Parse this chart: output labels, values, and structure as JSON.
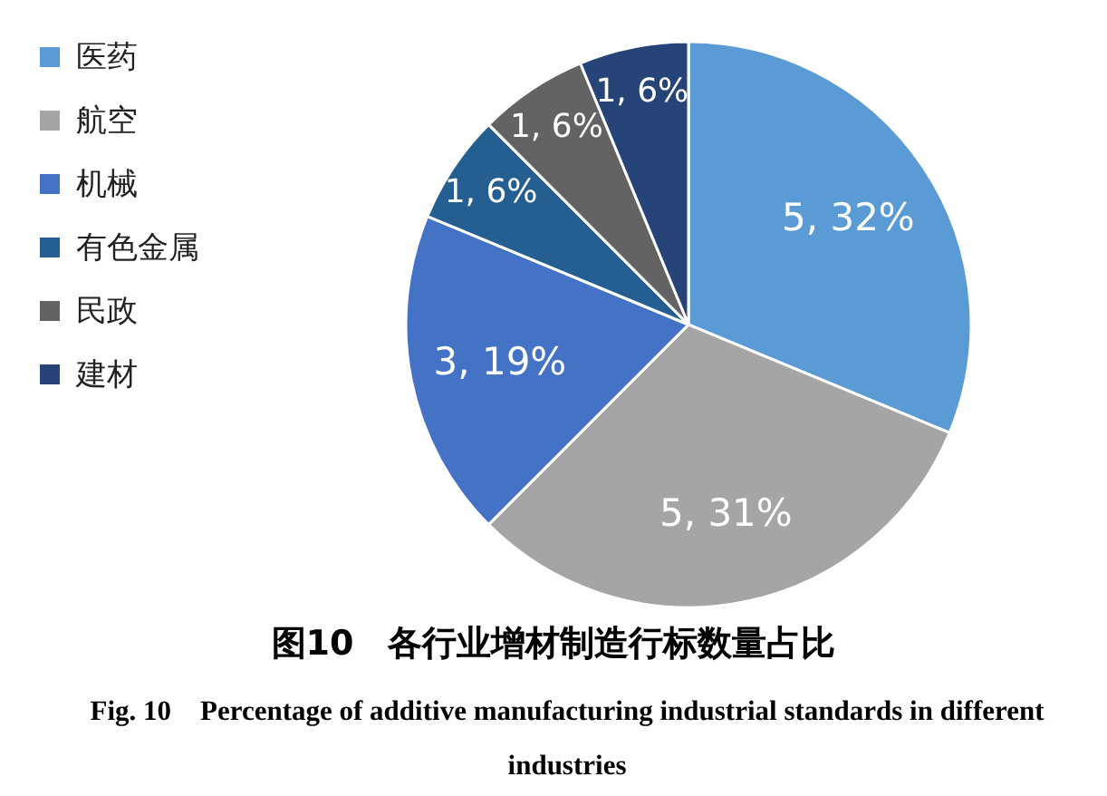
{
  "chart_data": {
    "type": "pie",
    "title": "图10　各行业增材制造行标数量占比",
    "subtitle": "Fig. 10　Percentage of additive manufacturing industrial standards in different industries",
    "categories": [
      "医药",
      "航空",
      "机械",
      "有色金属",
      "民政",
      "建材"
    ],
    "values": [
      5,
      5,
      3,
      1,
      1,
      1
    ],
    "value_labels": [
      "5, 32%",
      "5, 31%",
      "3, 19%",
      "1, 6%",
      "1, 6%",
      "1, 6%"
    ],
    "colors": [
      "#5b9bd5",
      "#a5a5a5",
      "#4472c4",
      "#255e91",
      "#636363",
      "#264478"
    ],
    "legend": "top left"
  }
}
